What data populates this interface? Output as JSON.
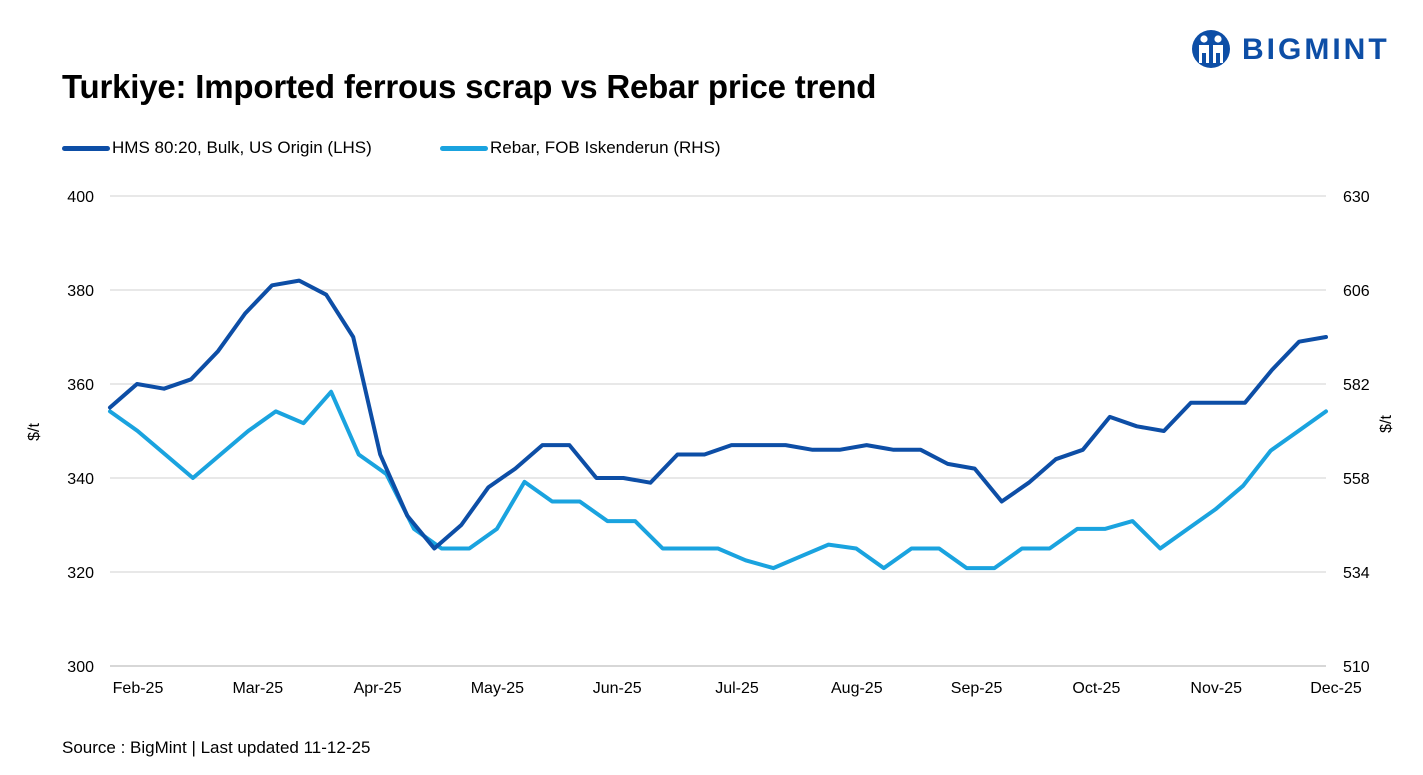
{
  "title": "Turkiye: Imported ferrous scrap vs Rebar price trend",
  "logo": {
    "text": "BIGMINT",
    "color": "#0d4ea6"
  },
  "source": "Source : BigMint | Last updated 11-12-25",
  "chart_data": {
    "type": "line",
    "x_labels": [
      "Feb-25",
      "Mar-25",
      "Apr-25",
      "May-25",
      "Jun-25",
      "Jul-25",
      "Aug-25",
      "Sep-25",
      "Oct-25",
      "Nov-25",
      "Dec-25"
    ],
    "left_axis": {
      "label": "$/t",
      "min": 300,
      "max": 400,
      "ticks": [
        300,
        320,
        340,
        360,
        380,
        400
      ]
    },
    "right_axis": {
      "label": "$/t",
      "min": 510,
      "max": 630,
      "ticks": [
        510,
        534,
        558,
        582,
        606,
        630
      ]
    },
    "grid": true,
    "legend_position": "top-left",
    "series": [
      {
        "name": "HMS 80:20, Bulk, US Origin (LHS)",
        "axis": "left",
        "color": "#0d4ea6",
        "values": [
          355,
          360,
          359,
          361,
          367,
          375,
          381,
          382,
          379,
          370,
          345,
          332,
          325,
          330,
          338,
          342,
          347,
          347,
          340,
          340,
          339,
          345,
          345,
          347,
          347,
          347,
          346,
          346,
          347,
          346,
          346,
          343,
          342,
          335,
          339,
          344,
          346,
          353,
          351,
          350,
          356,
          356,
          356,
          363,
          369,
          370
        ]
      },
      {
        "name": "Rebar, FOB Iskenderun (RHS)",
        "axis": "right",
        "color": "#1aa3df",
        "values": [
          575,
          570,
          564,
          558,
          564,
          570,
          575,
          572,
          580,
          564,
          559,
          545,
          540,
          540,
          545,
          557,
          552,
          552,
          547,
          547,
          540,
          540,
          540,
          537,
          535,
          538,
          541,
          540,
          535,
          540,
          540,
          535,
          535,
          540,
          540,
          545,
          545,
          547,
          540,
          545,
          550,
          556,
          565,
          570,
          575
        ]
      }
    ]
  }
}
